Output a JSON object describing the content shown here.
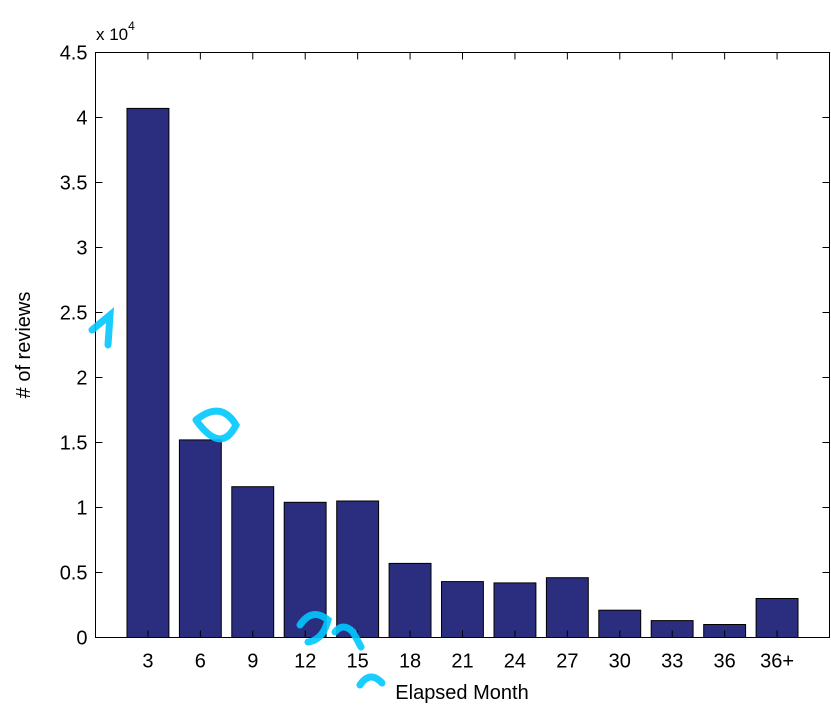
{
  "chart_data": {
    "type": "bar",
    "categories": [
      "3",
      "6",
      "9",
      "12",
      "15",
      "18",
      "21",
      "24",
      "27",
      "30",
      "33",
      "36",
      "36+"
    ],
    "values": [
      40700,
      15200,
      11600,
      10400,
      10500,
      5700,
      4300,
      4200,
      4600,
      2100,
      1300,
      1000,
      3000
    ],
    "title": "",
    "xlabel": "Elapsed Month",
    "ylabel": "# of reviews",
    "ylim": [
      0,
      45000
    ],
    "yticks": [
      0,
      5000,
      10000,
      15000,
      20000,
      25000,
      30000,
      35000,
      40000,
      45000
    ],
    "ytick_labels": [
      "0",
      "0.5",
      "1",
      "1.5",
      "2",
      "2.5",
      "3",
      "3.5",
      "4",
      "4.5"
    ],
    "y_multiplier": {
      "base": "x 10",
      "exponent": "4"
    },
    "bar_color": "#2b2e7e",
    "grid": false,
    "legend": "none"
  },
  "watermark_color": "#00c8ff"
}
